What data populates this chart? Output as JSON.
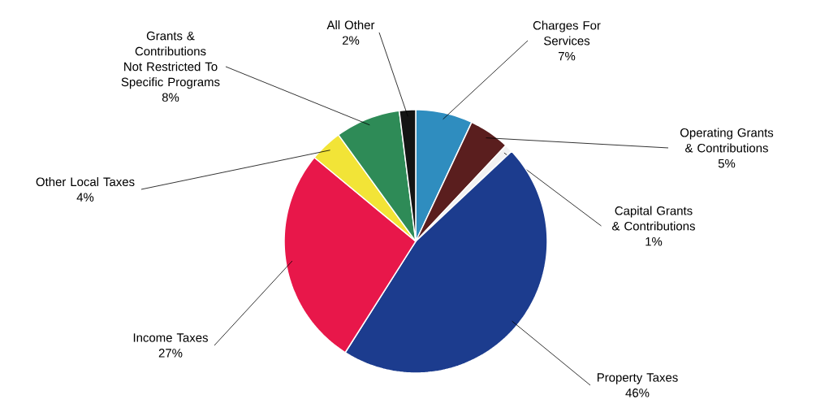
{
  "chart_data": {
    "type": "pie",
    "categories": [
      "Charges For Services",
      "Operating Grants & Contributions",
      "Capital Grants & Contributions",
      "Property Taxes",
      "Income Taxes",
      "Other Local Taxes",
      "Grants & Contributions Not Restricted To Specific Programs",
      "All Other"
    ],
    "values": [
      7,
      5,
      1,
      46,
      27,
      4,
      8,
      2
    ],
    "value_labels": [
      "7%",
      "5%",
      "1%",
      "46%",
      "27%",
      "4%",
      "8%",
      "2%"
    ],
    "colors": [
      "#2f8dbf",
      "#5a1e1e",
      "#f2f2f2",
      "#1c3c8e",
      "#e8174a",
      "#f2e437",
      "#2e8b57",
      "#141414"
    ]
  }
}
